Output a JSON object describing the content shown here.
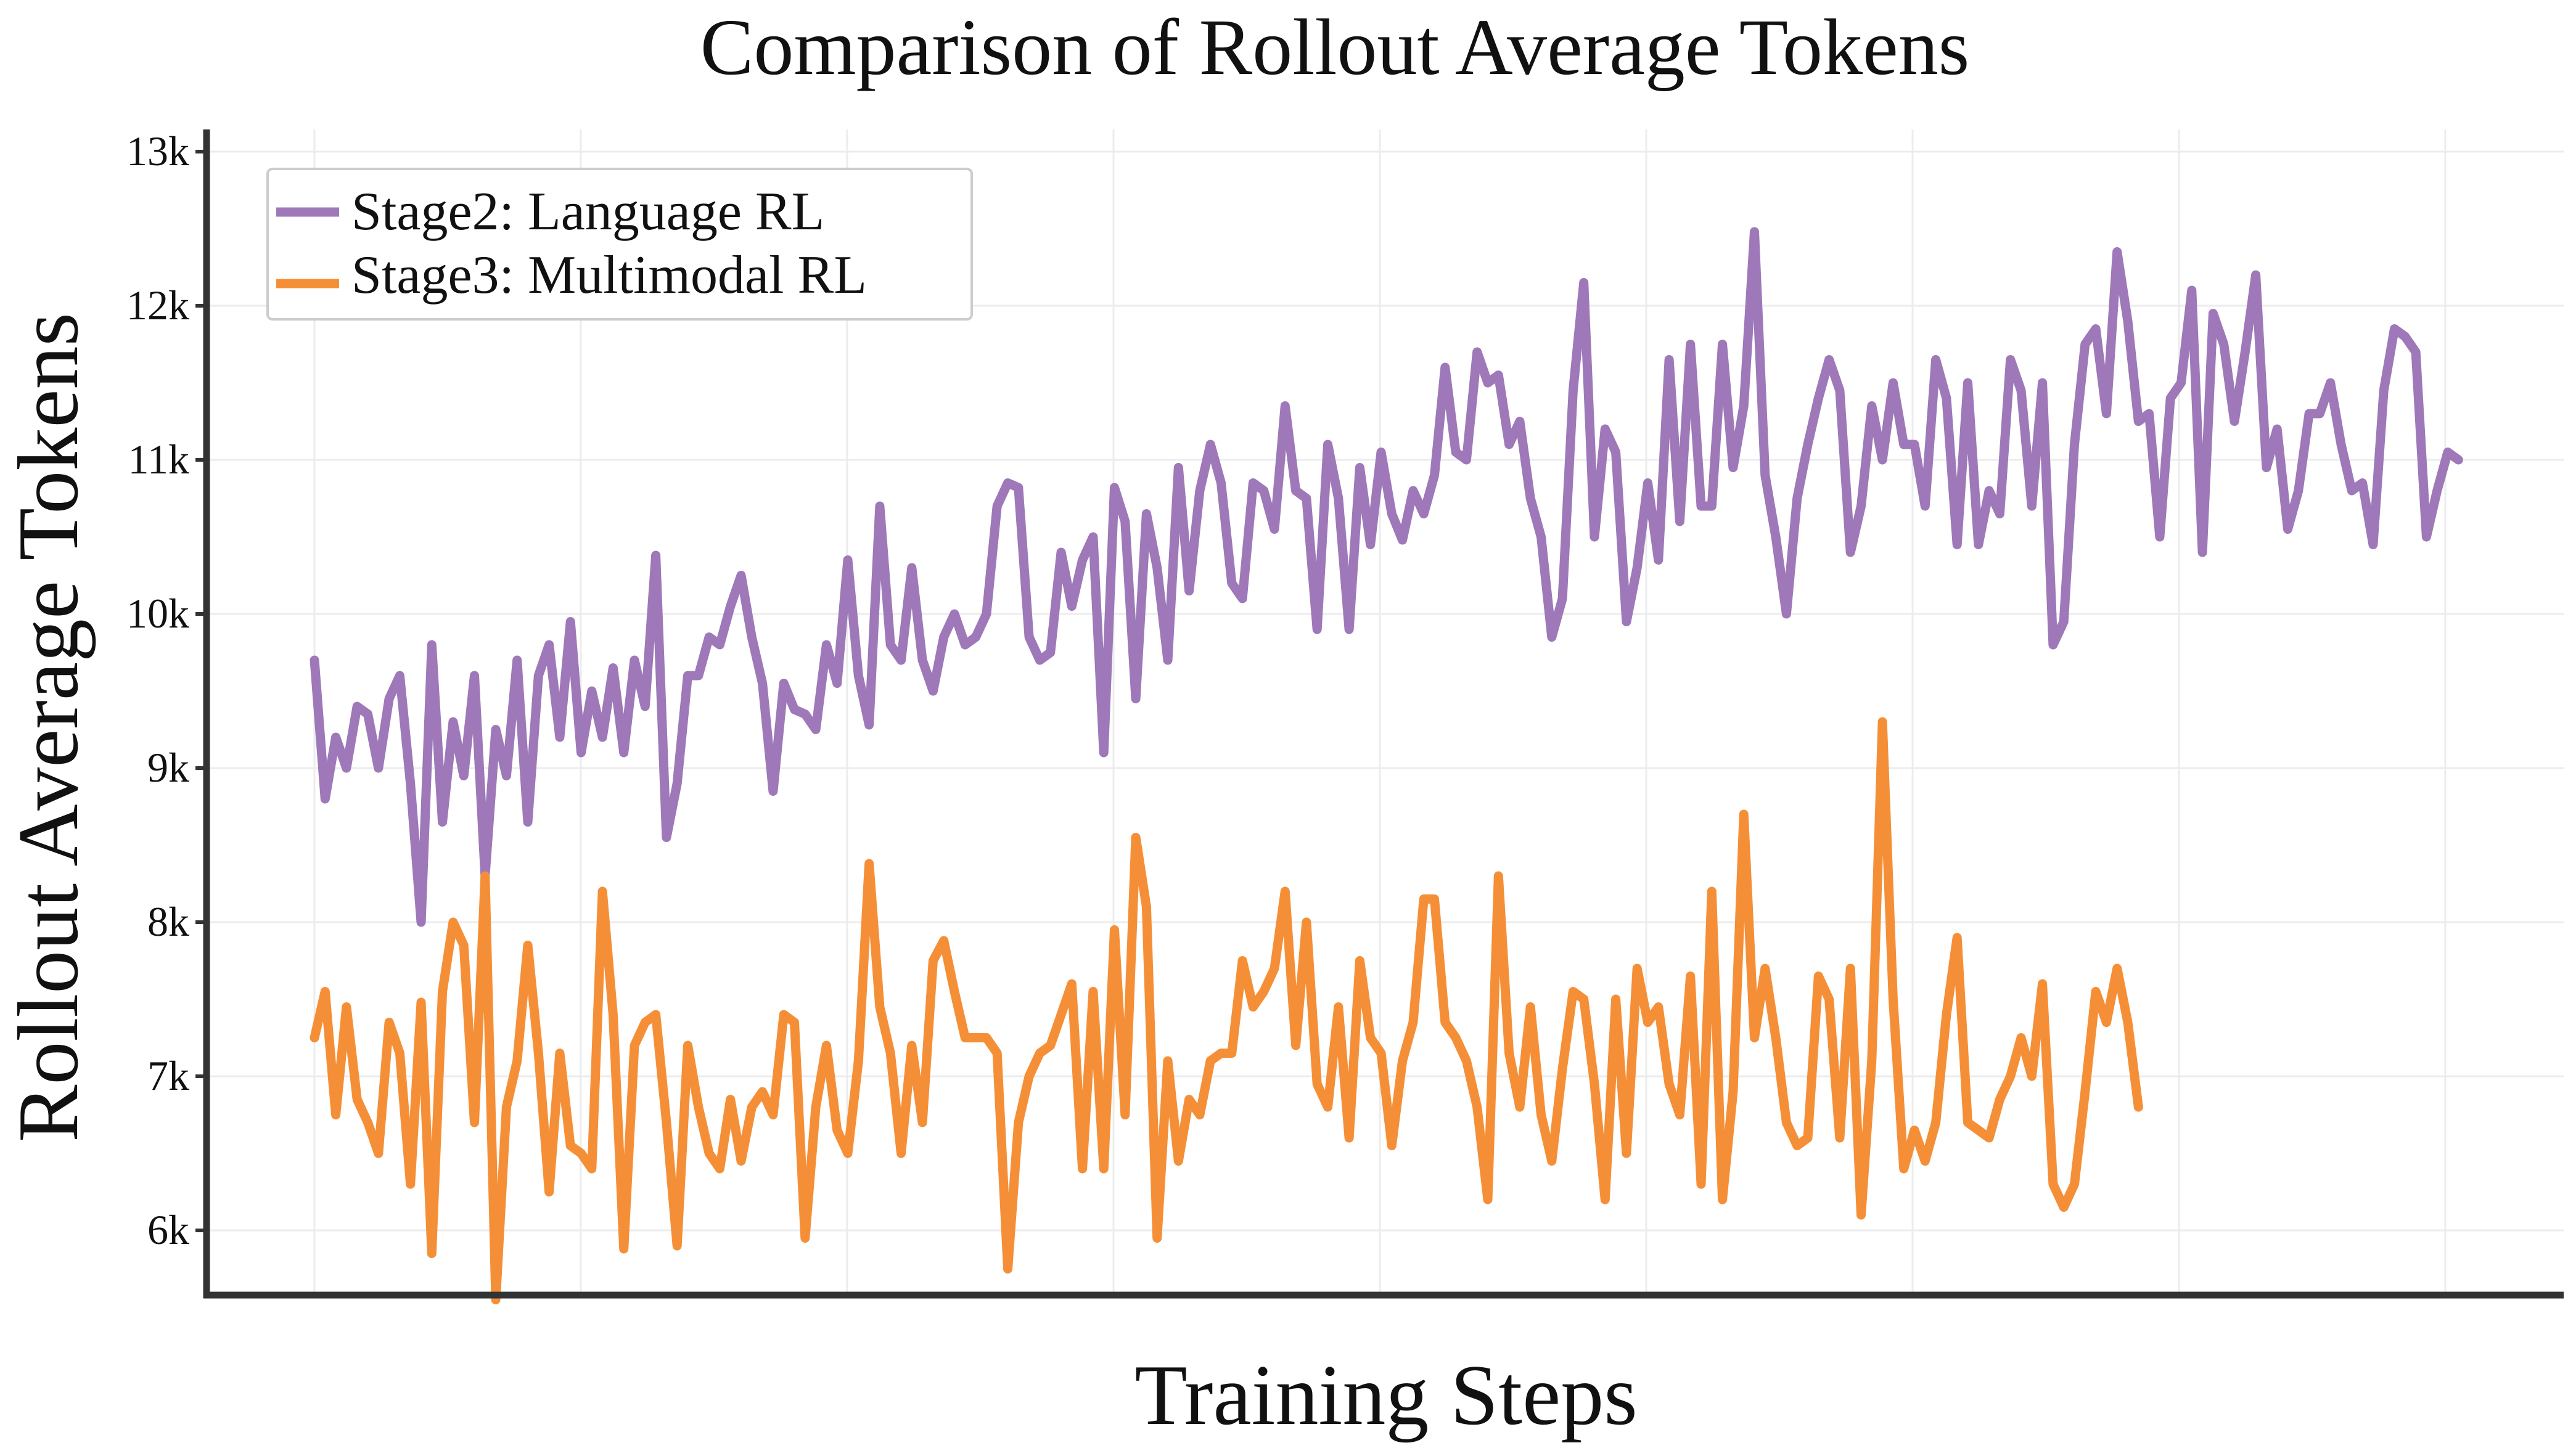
{
  "chart_data": {
    "type": "line",
    "title": "Comparison of Rollout Average Tokens",
    "xlabel": "Training Steps",
    "ylabel": "Rollout Average Tokens",
    "ylim": [
      5300,
      13200
    ],
    "yticks": [
      6000,
      7000,
      8000,
      9000,
      10000,
      11000,
      12000,
      13000
    ],
    "ytick_labels": [
      "6k",
      "7k",
      "8k",
      "9k",
      "10k",
      "11k",
      "12k",
      "13k"
    ],
    "x_tick_labels_shown": false,
    "grid": true,
    "legend_position": "top-left",
    "series": [
      {
        "name": "Stage2: Language RL",
        "color": "#9e78b8",
        "values": [
          9700,
          8800,
          9200,
          9000,
          9400,
          9350,
          9000,
          9450,
          9600,
          8900,
          8000,
          9800,
          8650,
          9300,
          8950,
          9600,
          8300,
          9250,
          8950,
          9700,
          8650,
          9600,
          9800,
          9200,
          9950,
          9100,
          9500,
          9200,
          9650,
          9100,
          9700,
          9400,
          10380,
          8550,
          8900,
          9600,
          9600,
          9850,
          9800,
          10050,
          10250,
          9850,
          9550,
          8850,
          9550,
          9380,
          9350,
          9250,
          9800,
          9550,
          10350,
          9600,
          9280,
          10700,
          9800,
          9700,
          10300,
          9700,
          9500,
          9850,
          10000,
          9800,
          9850,
          10000,
          10700,
          10850,
          10820,
          9850,
          9700,
          9750,
          10400,
          10050,
          10350,
          10500,
          9100,
          10820,
          10600,
          9450,
          10650,
          10300,
          9700,
          10950,
          10150,
          10800,
          11100,
          10850,
          10200,
          10100,
          10850,
          10800,
          10550,
          11350,
          10800,
          10750,
          9900,
          11100,
          10750,
          9900,
          10950,
          10450,
          11050,
          10650,
          10480,
          10800,
          10650,
          10900,
          11600,
          11050,
          11000,
          11700,
          11500,
          11550,
          11100,
          11250,
          10750,
          10500,
          9850,
          10100,
          11450,
          12150,
          10500,
          11200,
          11050,
          9950,
          10300,
          10850,
          10350,
          11650,
          10600,
          11750,
          10700,
          10700,
          11750,
          10950,
          11350,
          12480,
          10900,
          10500,
          10000,
          10750,
          11100,
          11400,
          11650,
          11450,
          10400,
          10700,
          11350,
          11000,
          11500,
          11100,
          11100,
          10700,
          11650,
          11400,
          10450,
          11500,
          10450,
          10800,
          10650,
          11650,
          11450,
          10700,
          11500,
          9800,
          9950,
          11100,
          11750,
          11850,
          11300,
          12350,
          11900,
          11250,
          11300,
          10500,
          11400,
          11500,
          12100,
          10400,
          11950,
          11750,
          11250,
          11700,
          12200,
          10950,
          11200,
          10550,
          10800,
          11300,
          11300,
          11500,
          11100,
          10800,
          10850,
          10450,
          11450,
          11850,
          11800,
          11700,
          10500,
          10800,
          11050,
          11000
        ]
      },
      {
        "name": "Stage3: Multimodal RL",
        "color": "#f58f37",
        "values": [
          7250,
          7550,
          6750,
          7450,
          6850,
          6700,
          6500,
          7350,
          7150,
          6300,
          7480,
          5850,
          7550,
          8000,
          7850,
          6700,
          8300,
          5550,
          6800,
          7100,
          7850,
          7150,
          6250,
          7150,
          6550,
          6500,
          6400,
          8200,
          7400,
          5880,
          7200,
          7350,
          7400,
          6700,
          5900,
          7200,
          6800,
          6500,
          6400,
          6850,
          6450,
          6800,
          6900,
          6750,
          7400,
          7350,
          5950,
          6800,
          7200,
          6650,
          6500,
          7100,
          8380,
          7450,
          7150,
          6500,
          7200,
          6700,
          7750,
          7880,
          7550,
          7250,
          7250,
          7250,
          7150,
          5750,
          6700,
          7000,
          7150,
          7200,
          7400,
          7600,
          6400,
          7550,
          6400,
          7950,
          6750,
          8550,
          8100,
          5950,
          7100,
          6450,
          6850,
          6750,
          7100,
          7150,
          7150,
          7750,
          7450,
          7550,
          7700,
          8200,
          7200,
          8000,
          6950,
          6800,
          7450,
          6600,
          7750,
          7250,
          7150,
          6550,
          7100,
          7350,
          8150,
          8150,
          7350,
          7250,
          7100,
          6800,
          6200,
          8300,
          7150,
          6800,
          7450,
          6750,
          6450,
          7050,
          7550,
          7500,
          6950,
          6200,
          7500,
          6500,
          7700,
          7350,
          7450,
          6950,
          6750,
          7650,
          6300,
          8200,
          6200,
          6900,
          8700,
          7250,
          7700,
          7250,
          6700,
          6550,
          6600,
          7650,
          7500,
          6600,
          7700,
          6100,
          7100,
          9300,
          7500,
          6400,
          6650,
          6450,
          6700,
          7400,
          7900,
          6700,
          6650,
          6600,
          6850,
          7000,
          7250,
          7000,
          7600,
          6300,
          6150,
          6300,
          6900,
          7550,
          7350,
          7700,
          7350,
          6800
        ]
      }
    ]
  }
}
